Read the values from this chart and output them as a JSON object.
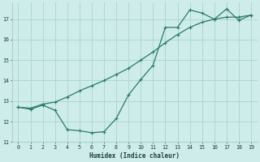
{
  "x": [
    0,
    1,
    2,
    3,
    4,
    5,
    6,
    7,
    8,
    9,
    10,
    11,
    12,
    13,
    14,
    15,
    16,
    17,
    18,
    19
  ],
  "line1": [
    12.7,
    12.65,
    12.85,
    12.95,
    13.2,
    13.5,
    13.75,
    14.0,
    14.3,
    14.6,
    15.0,
    15.4,
    15.85,
    16.25,
    16.6,
    16.85,
    17.0,
    17.1,
    17.1,
    17.2
  ],
  "line2": [
    12.7,
    12.6,
    12.8,
    12.55,
    11.6,
    11.55,
    11.45,
    11.5,
    12.15,
    13.3,
    14.05,
    14.75,
    16.6,
    16.6,
    17.45,
    17.3,
    17.0,
    17.5,
    16.95,
    17.2
  ],
  "line_color": "#2a7a6a",
  "bg_color": "#ceecea",
  "grid_color": "#a8d5d0",
  "xlabel": "Humidex (Indice chaleur)",
  "ylim": [
    11,
    17.8
  ],
  "xlim": [
    -0.5,
    19.5
  ],
  "yticks": [
    11,
    12,
    13,
    14,
    15,
    16,
    17
  ],
  "xticks": [
    0,
    1,
    2,
    3,
    4,
    5,
    6,
    7,
    8,
    9,
    10,
    11,
    12,
    13,
    14,
    15,
    16,
    17,
    18,
    19
  ],
  "font_color": "#1a4040",
  "markersize": 2.5,
  "linewidth": 0.9
}
